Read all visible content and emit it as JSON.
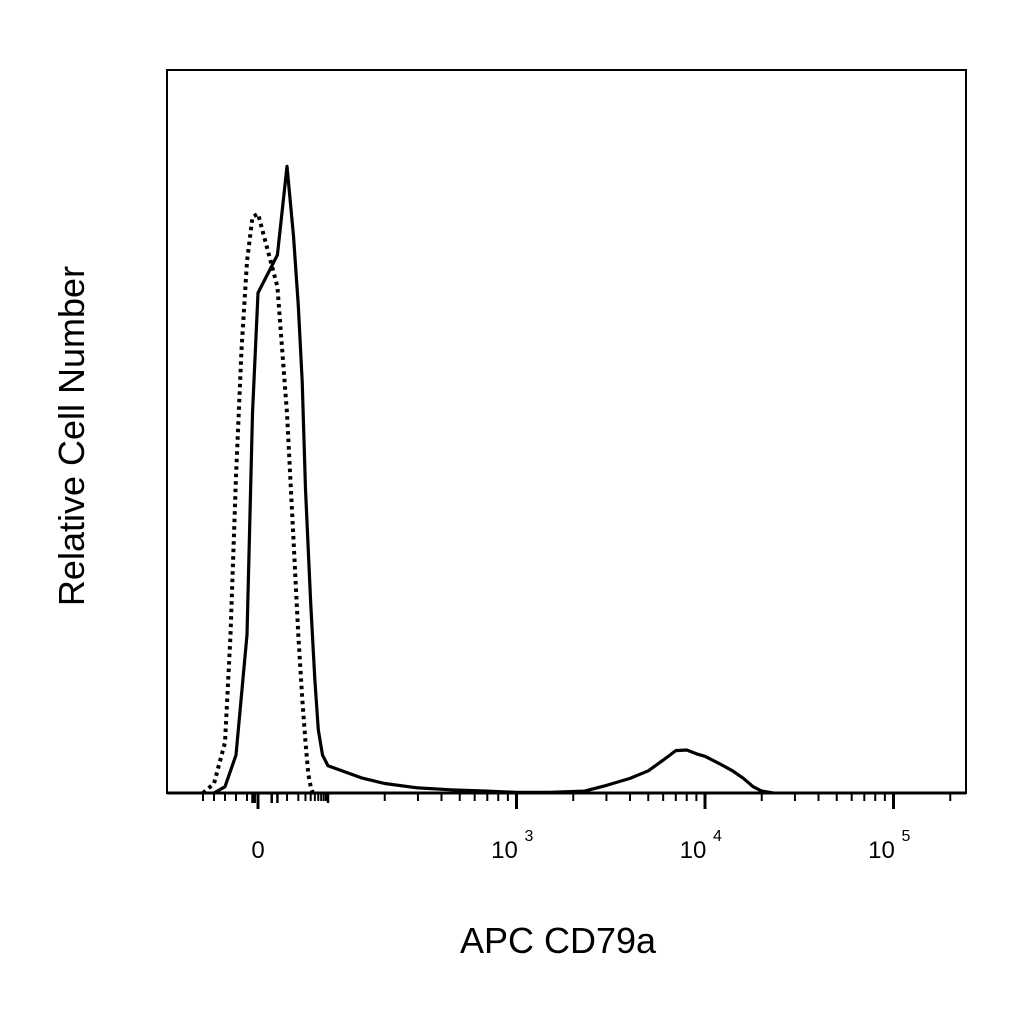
{
  "chart_data": {
    "type": "line",
    "title": "",
    "xlabel": "APC CD79a",
    "ylabel": "Relative Cell Number",
    "x_scale": "biexponential",
    "xlim": [
      -60,
      200000
    ],
    "ylim": [
      0,
      100
    ],
    "grid": false,
    "legend": "none",
    "x_ticks": [
      {
        "value": 0,
        "base": "0",
        "exp": ""
      },
      {
        "value": 1000,
        "base": "10",
        "exp": "3"
      },
      {
        "value": 10000,
        "base": "10",
        "exp": "4"
      },
      {
        "value": 100000,
        "base": "10",
        "exp": "5"
      }
    ],
    "series": [
      {
        "style": "solid",
        "color": "#000000",
        "points": [
          [
            -40,
            0
          ],
          [
            -30,
            1
          ],
          [
            -20,
            6
          ],
          [
            -10,
            25
          ],
          [
            -5,
            60
          ],
          [
            0,
            79
          ],
          [
            5,
            85
          ],
          [
            10,
            99
          ],
          [
            15,
            88
          ],
          [
            20,
            77
          ],
          [
            25,
            65
          ],
          [
            30,
            48
          ],
          [
            40,
            30
          ],
          [
            50,
            18
          ],
          [
            60,
            10
          ],
          [
            75,
            6
          ],
          [
            100,
            4.3
          ],
          [
            150,
            2.4
          ],
          [
            200,
            1.5
          ],
          [
            300,
            0.8
          ],
          [
            450,
            0.5
          ],
          [
            700,
            0.3
          ],
          [
            1000,
            0.1
          ],
          [
            1500,
            0.1
          ],
          [
            2300,
            0.3
          ],
          [
            3000,
            1.2
          ],
          [
            4000,
            2.3
          ],
          [
            5000,
            3.5
          ],
          [
            6000,
            5.2
          ],
          [
            7000,
            6.7
          ],
          [
            8000,
            6.8
          ],
          [
            9000,
            6.2
          ],
          [
            10000,
            5.8
          ],
          [
            12000,
            4.6
          ],
          [
            14000,
            3.5
          ],
          [
            16000,
            2.3
          ],
          [
            18000,
            1.0
          ],
          [
            20000,
            0.3
          ],
          [
            23000,
            0
          ]
        ]
      },
      {
        "style": "dotted",
        "color": "#000000",
        "points": [
          [
            -50,
            0
          ],
          [
            -40,
            1.5
          ],
          [
            -30,
            8
          ],
          [
            -25,
            25
          ],
          [
            -20,
            50
          ],
          [
            -15,
            70
          ],
          [
            -10,
            84
          ],
          [
            -5,
            91
          ],
          [
            0,
            91.5
          ],
          [
            5,
            80
          ],
          [
            10,
            60
          ],
          [
            15,
            40
          ],
          [
            20,
            25
          ],
          [
            25,
            15
          ],
          [
            30,
            8
          ],
          [
            35,
            3
          ],
          [
            40,
            1
          ],
          [
            45,
            0
          ]
        ]
      }
    ]
  }
}
